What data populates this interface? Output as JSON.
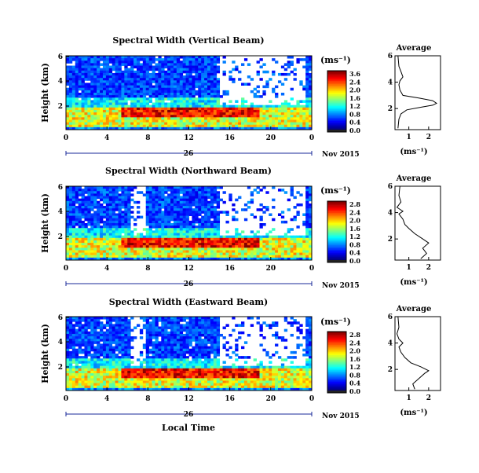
{
  "panels": [
    {
      "title": "Spectral Width (Vertical Beam)",
      "ylabel": "Height (km)",
      "yticks": [
        "6",
        "4",
        "2"
      ],
      "xticks": [
        "0",
        "4",
        "8",
        "12",
        "16",
        "20",
        "0"
      ],
      "day_label": "26",
      "date_label": "Nov 2015",
      "colorbar": {
        "unit": "(ms⁻¹)",
        "ticks": [
          "3.6",
          "2.4",
          "2.0",
          "1.6",
          "1.2",
          "0.8",
          "0.4",
          "0.0"
        ]
      },
      "average": {
        "title": "Average",
        "xlabel": "(ms⁻¹)",
        "xticks": [
          "1",
          "2"
        ],
        "yticks": [
          "6",
          "4",
          "2"
        ],
        "profile": [
          [
            0.45,
            0.5
          ],
          [
            0.5,
            1.2
          ],
          [
            0.6,
            1.6
          ],
          [
            0.9,
            1.9
          ],
          [
            1.6,
            2.1
          ],
          [
            2.2,
            2.25
          ],
          [
            2.4,
            2.4
          ],
          [
            2.2,
            2.6
          ],
          [
            1.5,
            2.8
          ],
          [
            0.7,
            3.0
          ],
          [
            0.55,
            3.4
          ],
          [
            0.5,
            3.8
          ],
          [
            0.55,
            4.1
          ],
          [
            0.7,
            4.4
          ],
          [
            0.6,
            4.8
          ],
          [
            0.5,
            5.2
          ],
          [
            0.45,
            6.0
          ]
        ]
      },
      "xlabel": ""
    },
    {
      "title": "Spectral Width (Northward Beam)",
      "ylabel": "Height (km)",
      "yticks": [
        "6",
        "4",
        "2"
      ],
      "xticks": [
        "0",
        "4",
        "8",
        "12",
        "16",
        "20",
        "0"
      ],
      "day_label": "26",
      "date_label": "Nov 2015",
      "colorbar": {
        "unit": "(ms⁻¹)",
        "ticks": [
          "2.8",
          "2.4",
          "2.0",
          "1.6",
          "1.2",
          "0.8",
          "0.4",
          "0.0"
        ]
      },
      "average": {
        "title": "Average",
        "xlabel": "(ms⁻¹)",
        "xticks": [
          "1",
          "2"
        ],
        "yticks": [
          "6",
          "4",
          "2"
        ],
        "profile": [
          [
            1.6,
            0.5
          ],
          [
            1.9,
            0.9
          ],
          [
            1.7,
            1.3
          ],
          [
            2.0,
            1.7
          ],
          [
            1.7,
            2.0
          ],
          [
            1.3,
            2.4
          ],
          [
            1.0,
            2.8
          ],
          [
            0.8,
            3.1
          ],
          [
            0.7,
            3.5
          ],
          [
            0.5,
            3.9
          ],
          [
            0.7,
            4.1
          ],
          [
            0.4,
            4.4
          ],
          [
            0.6,
            4.8
          ],
          [
            0.5,
            5.3
          ],
          [
            0.55,
            6.0
          ]
        ]
      },
      "xlabel": ""
    },
    {
      "title": "Spectral Width (Eastward Beam)",
      "ylabel": "Height (km)",
      "yticks": [
        "6",
        "4",
        "2"
      ],
      "xticks": [
        "0",
        "4",
        "8",
        "12",
        "16",
        "20",
        "0"
      ],
      "day_label": "26",
      "date_label": "Nov 2015",
      "colorbar": {
        "unit": "(ms⁻¹)",
        "ticks": [
          "2.8",
          "2.4",
          "2.0",
          "1.6",
          "1.2",
          "0.8",
          "0.4",
          "0.0"
        ]
      },
      "average": {
        "title": "Average",
        "xlabel": "(ms⁻¹)",
        "xticks": [
          "1",
          "2"
        ],
        "yticks": [
          "6",
          "4",
          "2"
        ],
        "profile": [
          [
            1.3,
            0.5
          ],
          [
            1.2,
            0.9
          ],
          [
            1.5,
            1.3
          ],
          [
            1.8,
            1.7
          ],
          [
            2.0,
            1.9
          ],
          [
            1.6,
            2.2
          ],
          [
            1.1,
            2.5
          ],
          [
            0.8,
            2.9
          ],
          [
            0.6,
            3.3
          ],
          [
            0.5,
            3.7
          ],
          [
            0.7,
            4.0
          ],
          [
            0.5,
            4.3
          ],
          [
            0.4,
            4.7
          ],
          [
            0.5,
            5.2
          ],
          [
            0.45,
            6.0
          ]
        ]
      },
      "xlabel": "Local Time"
    }
  ],
  "chart_data": [
    {
      "type": "heatmap",
      "title": "Spectral Width (Vertical Beam)",
      "xlabel": "",
      "ylabel": "Height (km)",
      "x_range_hours": [
        0,
        24
      ],
      "y_range_km": [
        0.4,
        6.2
      ],
      "color_scale": {
        "min": 0.0,
        "max": 3.6,
        "colormap": "jet"
      },
      "average_profile": {
        "type": "line",
        "title": "Average",
        "xlabel": "(ms⁻¹)",
        "width": [
          0.45,
          0.5,
          0.6,
          0.9,
          1.6,
          2.2,
          2.4,
          2.2,
          1.5,
          0.7,
          0.55,
          0.5,
          0.55,
          0.7,
          0.6,
          0.5,
          0.45
        ],
        "height": [
          0.5,
          1.2,
          1.6,
          1.9,
          2.1,
          2.25,
          2.4,
          2.6,
          2.8,
          3.0,
          3.4,
          3.8,
          4.1,
          4.4,
          4.8,
          5.2,
          6.0
        ]
      }
    },
    {
      "type": "heatmap",
      "title": "Spectral Width (Northward Beam)",
      "xlabel": "",
      "ylabel": "Height (km)",
      "x_range_hours": [
        0,
        24
      ],
      "y_range_km": [
        0.4,
        6.2
      ],
      "color_scale": {
        "min": 0.0,
        "max": 2.8,
        "colormap": "jet"
      },
      "average_profile": {
        "type": "line",
        "title": "Average",
        "xlabel": "(ms⁻¹)",
        "width": [
          1.6,
          1.9,
          1.7,
          2.0,
          1.7,
          1.3,
          1.0,
          0.8,
          0.7,
          0.5,
          0.7,
          0.4,
          0.6,
          0.5,
          0.55
        ],
        "height": [
          0.5,
          0.9,
          1.3,
          1.7,
          2.0,
          2.4,
          2.8,
          3.1,
          3.5,
          3.9,
          4.1,
          4.4,
          4.8,
          5.3,
          6.0
        ]
      }
    },
    {
      "type": "heatmap",
      "title": "Spectral Width (Eastward Beam)",
      "xlabel": "Local Time",
      "ylabel": "Height (km)",
      "x_range_hours": [
        0,
        24
      ],
      "y_range_km": [
        0.4,
        6.2
      ],
      "color_scale": {
        "min": 0.0,
        "max": 2.8,
        "colormap": "jet"
      },
      "average_profile": {
        "type": "line",
        "title": "Average",
        "xlabel": "(ms⁻¹)",
        "width": [
          1.3,
          1.2,
          1.5,
          1.8,
          2.0,
          1.6,
          1.1,
          0.8,
          0.6,
          0.5,
          0.7,
          0.5,
          0.4,
          0.5,
          0.45
        ],
        "height": [
          0.5,
          0.9,
          1.3,
          1.7,
          1.9,
          2.2,
          2.5,
          2.9,
          3.3,
          3.7,
          4.0,
          4.3,
          4.7,
          5.2,
          6.0
        ]
      }
    }
  ]
}
